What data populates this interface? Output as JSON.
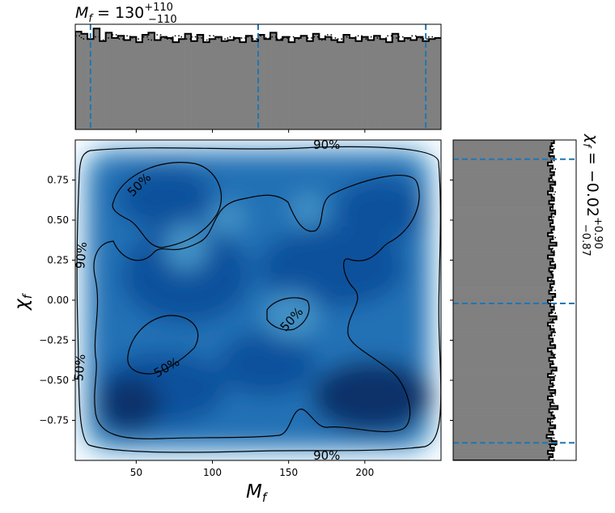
{
  "chart_data": {
    "type": "corner-plot",
    "title_top": {
      "param": "M",
      "sub": "f",
      "eq": " = 130",
      "sup": "+110",
      "low": "−110"
    },
    "title_right": {
      "param": "χ",
      "sub": "f",
      "eq": " = −0.02",
      "sup": "+0.90",
      "low": "−0.87"
    },
    "xlabel": {
      "param": "M",
      "sub": "f"
    },
    "ylabel": {
      "param": "χ",
      "sub": "f"
    },
    "xlim": [
      10,
      250
    ],
    "ylim": [
      -1,
      1
    ],
    "x_ticks": [
      50,
      100,
      150,
      200
    ],
    "x_tick_labels": [
      "50",
      "100",
      "150",
      "200"
    ],
    "y_ticks": [
      0.75,
      0.5,
      0.25,
      0.0,
      -0.25,
      -0.5,
      -0.75
    ],
    "y_tick_labels": [
      "0.75",
      "0.50",
      "0.25",
      "0.00",
      "−0.25",
      "−0.50",
      "−0.75"
    ],
    "mass_quantiles": [
      20,
      130,
      240
    ],
    "spin_quantiles": [
      0.88,
      -0.02,
      -0.89
    ],
    "contour_labels": [
      {
        "text": "50%",
        "x": 52,
        "y": 0.72,
        "rot": -45
      },
      {
        "text": "90%",
        "x": 175,
        "y": 0.97,
        "rot": 0
      },
      {
        "text": "90%",
        "x": 14,
        "y": 0.28,
        "rot": -85
      },
      {
        "text": "50%",
        "x": 152,
        "y": -0.12,
        "rot": -48
      },
      {
        "text": "50%",
        "x": 13,
        "y": -0.42,
        "rot": -85
      },
      {
        "text": "50%",
        "x": 70,
        "y": -0.42,
        "rot": -30
      },
      {
        "text": "90%",
        "x": 175,
        "y": -0.97,
        "rot": 0
      }
    ],
    "mass_hist": {
      "bin_edges_start": 10,
      "bin_width": 4,
      "heights": [
        0.93,
        0.91,
        0.86,
        0.96,
        0.84,
        0.92,
        0.87,
        0.89,
        0.85,
        0.88,
        0.83,
        0.9,
        0.92,
        0.85,
        0.88,
        0.87,
        0.83,
        0.86,
        0.91,
        0.84,
        0.9,
        0.83,
        0.86,
        0.88,
        0.84,
        0.85,
        0.87,
        0.83,
        0.89,
        0.84,
        0.9,
        0.86,
        0.92,
        0.85,
        0.88,
        0.83,
        0.87,
        0.89,
        0.84,
        0.91,
        0.86,
        0.88,
        0.85,
        0.83,
        0.9,
        0.87,
        0.84,
        0.88,
        0.85,
        0.89,
        0.86,
        0.83,
        0.91,
        0.84,
        0.87,
        0.85,
        0.88,
        0.84,
        0.86,
        0.87
      ],
      "heights_dotted": [
        0.89,
        0.86,
        0.9,
        0.88,
        0.85,
        0.87,
        0.9,
        0.86,
        0.89,
        0.87,
        0.86,
        0.88,
        0.85,
        0.9,
        0.87,
        0.86,
        0.89,
        0.88,
        0.86,
        0.88,
        0.87,
        0.85,
        0.89,
        0.87,
        0.86,
        0.88,
        0.86,
        0.87,
        0.88,
        0.86,
        0.89,
        0.87,
        0.88,
        0.86,
        0.87,
        0.88,
        0.86,
        0.89,
        0.87,
        0.88,
        0.85,
        0.9,
        0.87,
        0.86,
        0.88,
        0.87,
        0.89,
        0.86,
        0.88,
        0.87,
        0.86,
        0.89,
        0.87,
        0.88,
        0.86,
        0.89,
        0.87,
        0.86,
        0.88,
        0.87
      ]
    },
    "spin_hist": {
      "bin_edges_start": -1,
      "bin_width": 0.02,
      "widths": [
        0.78,
        0.81,
        0.77,
        0.82,
        0.79,
        0.84,
        0.8,
        0.76,
        0.81,
        0.78,
        0.83,
        0.79,
        0.77,
        0.82,
        0.8,
        0.78,
        0.85,
        0.79,
        0.81,
        0.77,
        0.8,
        0.83,
        0.78,
        0.81,
        0.79,
        0.82,
        0.77,
        0.8,
        0.84,
        0.79,
        0.81,
        0.78,
        0.82,
        0.8,
        0.77,
        0.83,
        0.79,
        0.81,
        0.78,
        0.8,
        0.82,
        0.79,
        0.77,
        0.81,
        0.84,
        0.78,
        0.8,
        0.82,
        0.79,
        0.77,
        0.81,
        0.83,
        0.78,
        0.8,
        0.79,
        0.82,
        0.77,
        0.81,
        0.8,
        0.78,
        0.83,
        0.79,
        0.81,
        0.77,
        0.82,
        0.8,
        0.78,
        0.84,
        0.79,
        0.81,
        0.77,
        0.8,
        0.82,
        0.79,
        0.81,
        0.78,
        0.8,
        0.83,
        0.79,
        0.81,
        0.78,
        0.82,
        0.8,
        0.77,
        0.81,
        0.79,
        0.83,
        0.78,
        0.8,
        0.82,
        0.79,
        0.81,
        0.77,
        0.8,
        0.82,
        0.78,
        0.81,
        0.79,
        0.8,
        0.82
      ],
      "widths_dotted": [
        0.82,
        0.79,
        0.81,
        0.8,
        0.83,
        0.78,
        0.81,
        0.82,
        0.79,
        0.8,
        0.82,
        0.81,
        0.79,
        0.83,
        0.8,
        0.81,
        0.79,
        0.82,
        0.8,
        0.81,
        0.83,
        0.79,
        0.8,
        0.82,
        0.81,
        0.79,
        0.83,
        0.8,
        0.81,
        0.82,
        0.79,
        0.8,
        0.83,
        0.81,
        0.8,
        0.79,
        0.82,
        0.81,
        0.8,
        0.83,
        0.79,
        0.81,
        0.82,
        0.8,
        0.79,
        0.83,
        0.81,
        0.8,
        0.82,
        0.79,
        0.81,
        0.8,
        0.83,
        0.79,
        0.81,
        0.82,
        0.8,
        0.81,
        0.79,
        0.82,
        0.8,
        0.83,
        0.81,
        0.79,
        0.8,
        0.82,
        0.81,
        0.8,
        0.79,
        0.83,
        0.81,
        0.8,
        0.82,
        0.79,
        0.81,
        0.8,
        0.83,
        0.8,
        0.81,
        0.79,
        0.82,
        0.8,
        0.81,
        0.83,
        0.79,
        0.8,
        0.82,
        0.81,
        0.8,
        0.79,
        0.83,
        0.81,
        0.8,
        0.82,
        0.79,
        0.81,
        0.8,
        0.82,
        0.81,
        0.8
      ]
    },
    "density_colormap": "Blues",
    "colors": {
      "hist_fill": "#808080",
      "quantile_line": "#1f77b4",
      "contour": "#000000"
    }
  }
}
